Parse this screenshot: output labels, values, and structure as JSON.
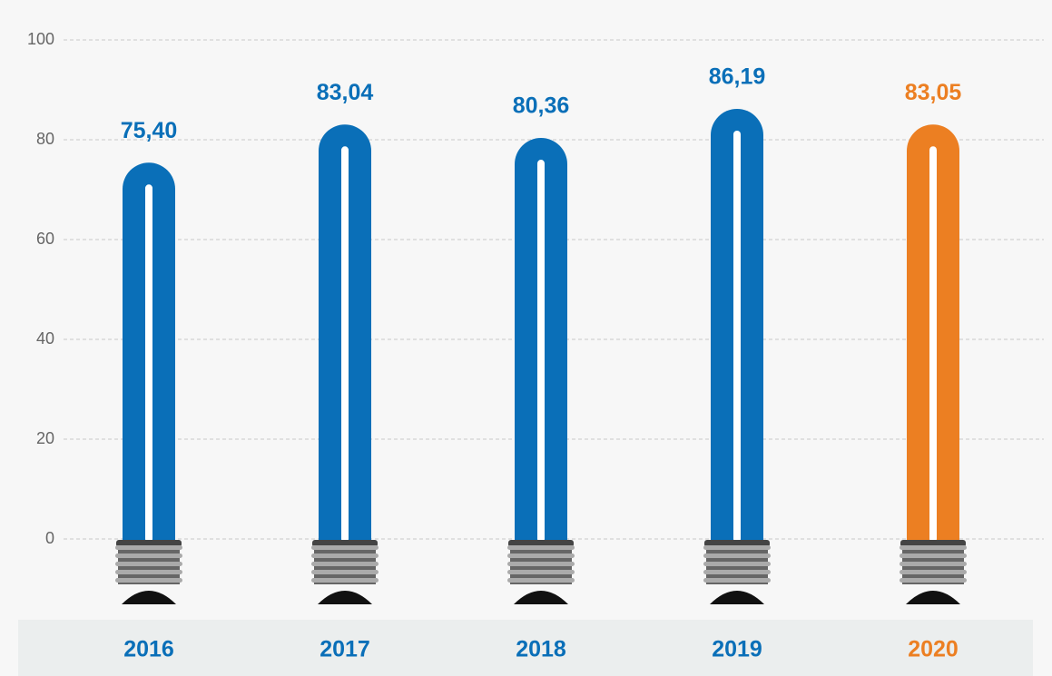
{
  "chart_data": {
    "type": "bulb",
    "categories": [
      "2016",
      "2017",
      "2018",
      "2019",
      "2020"
    ],
    "values": [
      75.4,
      83.04,
      80.36,
      86.19,
      83.05
    ],
    "value_labels": [
      "75,40",
      "83,04",
      "80,36",
      "86,19",
      "83,05"
    ],
    "colors": [
      "#0a6fb8",
      "#0a6fb8",
      "#0a6fb8",
      "#0a6fb8",
      "#ec7f22"
    ],
    "ylim": [
      0,
      100
    ],
    "yticks": [
      0,
      20,
      40,
      60,
      80,
      100
    ],
    "grid": true
  }
}
